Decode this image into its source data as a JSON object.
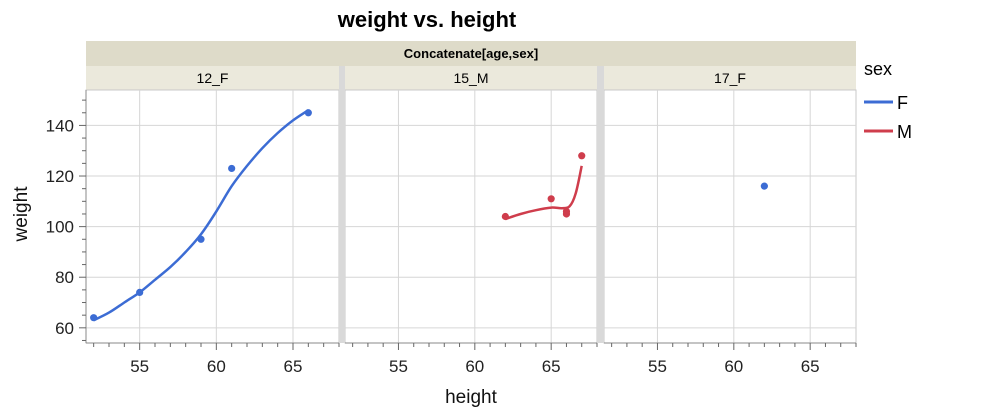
{
  "chart_data": {
    "type": "scatter",
    "title": "weight vs. height",
    "group_title": "Concatenate[age,sex]",
    "xlabel": "height",
    "ylabel": "weight",
    "xlim": [
      51.5,
      68
    ],
    "ylim": [
      54,
      154
    ],
    "x_ticks": [
      55,
      60,
      65
    ],
    "y_ticks": [
      60,
      80,
      100,
      120,
      140
    ],
    "grid": true,
    "smoother": true,
    "legend": {
      "title": "sex",
      "position": "right",
      "items": [
        {
          "label": "F",
          "color": "#3c6cd4"
        },
        {
          "label": "M",
          "color": "#cf3d4c"
        }
      ]
    },
    "panels": [
      {
        "label": "12_F",
        "sex": "F",
        "points": [
          {
            "x": 52,
            "y": 64
          },
          {
            "x": 55,
            "y": 74
          },
          {
            "x": 59,
            "y": 95
          },
          {
            "x": 61,
            "y": 123
          },
          {
            "x": 66,
            "y": 145
          }
        ],
        "fit": [
          [
            52,
            63
          ],
          [
            53,
            66
          ],
          [
            54,
            70
          ],
          [
            55,
            74
          ],
          [
            56,
            79
          ],
          [
            57,
            84
          ],
          [
            58,
            90
          ],
          [
            59,
            97
          ],
          [
            60,
            106
          ],
          [
            61,
            116
          ],
          [
            62,
            124
          ],
          [
            63,
            131
          ],
          [
            64,
            137
          ],
          [
            65,
            142
          ],
          [
            66,
            146
          ]
        ]
      },
      {
        "label": "15_M",
        "sex": "M",
        "points": [
          {
            "x": 62,
            "y": 104
          },
          {
            "x": 65,
            "y": 111
          },
          {
            "x": 66,
            "y": 105
          },
          {
            "x": 66,
            "y": 106
          },
          {
            "x": 67,
            "y": 128
          }
        ],
        "fit": [
          [
            62,
            103
          ],
          [
            63,
            105
          ],
          [
            64,
            106.5
          ],
          [
            65,
            107.5
          ],
          [
            65.7,
            107.3
          ],
          [
            66.2,
            108
          ],
          [
            66.6,
            113
          ],
          [
            67,
            124
          ]
        ]
      },
      {
        "label": "17_F",
        "sex": "F",
        "points": [
          {
            "x": 62,
            "y": 116
          }
        ],
        "fit": []
      }
    ]
  }
}
